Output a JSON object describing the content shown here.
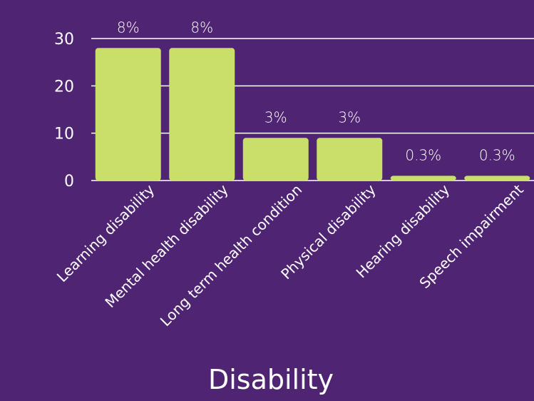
{
  "colors": {
    "background": "#4f2472",
    "bar": "#c9df69",
    "text": "#ffffff",
    "grid": "#ffffff"
  },
  "chart_data": {
    "type": "bar",
    "xlabel": "Disability",
    "ylabel": "",
    "ylim": [
      0,
      30
    ],
    "yticks": [
      0,
      10,
      20,
      30
    ],
    "grid": true,
    "categories": [
      "Learning disability",
      "Mental health disability",
      "Long term health condition",
      "Physical disability",
      "Hearing disability",
      "Speech impairment"
    ],
    "values": [
      28,
      28,
      9,
      9,
      1,
      1
    ],
    "data_labels": [
      "8%",
      "8%",
      "3%",
      "3%",
      "0.3%",
      "0.3%"
    ]
  }
}
